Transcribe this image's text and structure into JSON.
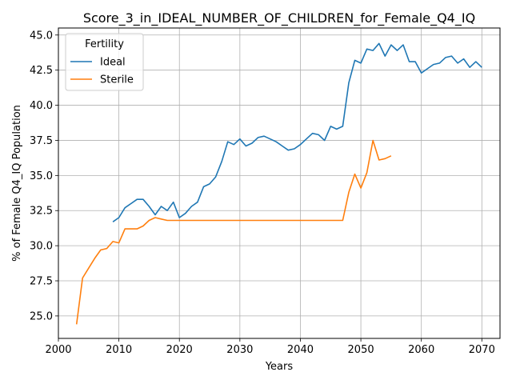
{
  "chart_data": {
    "type": "line",
    "title": "Score_3_in_IDEAL_NUMBER_OF_CHILDREN_for_Female_Q4_IQ",
    "xlabel": "Years",
    "ylabel": "% of Female Q4_IQ Population",
    "xlim": [
      2000,
      2073
    ],
    "ylim": [
      23.4,
      45.5
    ],
    "xticks": [
      2000,
      2010,
      2020,
      2030,
      2040,
      2050,
      2060,
      2070
    ],
    "yticks": [
      25.0,
      27.5,
      30.0,
      32.5,
      35.0,
      37.5,
      40.0,
      42.5,
      45.0
    ],
    "ytick_labels": [
      "25.0",
      "27.5",
      "30.0",
      "32.5",
      "35.0",
      "37.5",
      "40.0",
      "42.5",
      "45.0"
    ],
    "grid": true,
    "legend": {
      "title": "Fertility",
      "position": "top-left"
    },
    "series": [
      {
        "name": "Ideal",
        "color": "#1f77b4",
        "x": [
          2009,
          2010,
          2011,
          2012,
          2013,
          2014,
          2015,
          2016,
          2017,
          2018,
          2019,
          2020,
          2021,
          2022,
          2023,
          2024,
          2025,
          2026,
          2027,
          2028,
          2029,
          2030,
          2031,
          2032,
          2033,
          2034,
          2035,
          2036,
          2037,
          2038,
          2039,
          2040,
          2041,
          2042,
          2043,
          2044,
          2045,
          2046,
          2047,
          2048,
          2049,
          2050,
          2051,
          2052,
          2053,
          2054,
          2055,
          2056,
          2057,
          2058,
          2059,
          2060,
          2061,
          2062,
          2063,
          2064,
          2065,
          2066,
          2067,
          2068,
          2069,
          2070
        ],
        "values": [
          31.7,
          32.0,
          32.7,
          33.0,
          33.3,
          33.3,
          32.8,
          32.2,
          32.8,
          32.5,
          33.1,
          32.0,
          32.3,
          32.8,
          33.1,
          34.2,
          34.4,
          34.9,
          36.0,
          37.4,
          37.2,
          37.6,
          37.1,
          37.3,
          37.7,
          37.8,
          37.6,
          37.4,
          37.1,
          36.8,
          36.9,
          37.2,
          37.6,
          38.0,
          37.9,
          37.5,
          38.5,
          38.3,
          38.5,
          41.6,
          43.2,
          43.0,
          44.0,
          43.9,
          44.4,
          43.5,
          44.3,
          43.9,
          44.3,
          43.1,
          43.1,
          42.3,
          42.6,
          42.9,
          43.0,
          43.4,
          43.5,
          43.0,
          43.3,
          42.7,
          43.1,
          42.7
        ]
      },
      {
        "name": "Sterile",
        "color": "#ff7f0e",
        "x": [
          2003,
          2004,
          2005,
          2006,
          2007,
          2008,
          2009,
          2010,
          2011,
          2012,
          2013,
          2014,
          2015,
          2016,
          2017,
          2018,
          2019,
          2020,
          2021,
          2022,
          2023,
          2024,
          2025,
          2026,
          2027,
          2028,
          2029,
          2030,
          2031,
          2032,
          2033,
          2034,
          2035,
          2036,
          2037,
          2038,
          2039,
          2040,
          2041,
          2042,
          2043,
          2044,
          2045,
          2046,
          2047,
          2048,
          2049,
          2050,
          2051,
          2052,
          2053,
          2054,
          2055
        ],
        "values": [
          24.4,
          27.7,
          28.4,
          29.1,
          29.7,
          29.8,
          30.3,
          30.2,
          31.2,
          31.2,
          31.2,
          31.4,
          31.8,
          32.0,
          31.9,
          31.8,
          31.8,
          31.8,
          31.8,
          31.8,
          31.8,
          31.8,
          31.8,
          31.8,
          31.8,
          31.8,
          31.8,
          31.8,
          31.8,
          31.8,
          31.8,
          31.8,
          31.8,
          31.8,
          31.8,
          31.8,
          31.8,
          31.8,
          31.8,
          31.8,
          31.8,
          31.8,
          31.8,
          31.8,
          31.8,
          33.8,
          35.1,
          34.1,
          35.2,
          37.5,
          36.1,
          36.2,
          36.4
        ]
      }
    ]
  }
}
